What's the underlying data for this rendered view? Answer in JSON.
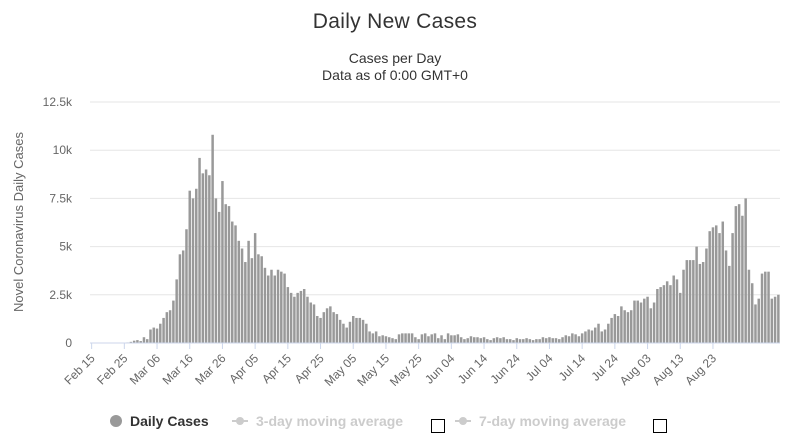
{
  "chart_data": {
    "type": "bar",
    "title": "Daily New Cases",
    "subtitle_lines": [
      "Cases per Day",
      "Data as of 0:00 GMT+0"
    ],
    "ylabel": "Novel Coronavirus Daily Cases",
    "xlabel": "",
    "ylim": [
      0,
      12500
    ],
    "yticks": [
      0,
      2500,
      5000,
      7500,
      10000,
      12500
    ],
    "ytick_labels": [
      "0",
      "2.5k",
      "5k",
      "7.5k",
      "10k",
      "12.5k"
    ],
    "x_start": "2020-02-15",
    "xtick_labels": [
      "Feb 15",
      "Feb 25",
      "Mar 06",
      "Mar 16",
      "Mar 26",
      "Apr 05",
      "Apr 15",
      "Apr 25",
      "May 05",
      "May 15",
      "May 25",
      "Jun 04",
      "Jun 14",
      "Jun 24",
      "Jul 04",
      "Jul 14",
      "Jul 24",
      "Aug 03",
      "Aug 13",
      "Aug 23"
    ],
    "grid": true,
    "legend_position": "bottom",
    "colors": {
      "bars": "#999999",
      "grid": "#e6e6e6",
      "axis": "#ccd6eb",
      "legend_inactive": "#cccccc",
      "text": "#333333",
      "tick": "#666666"
    },
    "series": [
      {
        "name": "Daily Cases",
        "values": [
          0,
          0,
          0,
          0,
          0,
          0,
          0,
          0,
          0,
          0,
          20,
          30,
          60,
          120,
          150,
          100,
          300,
          200,
          700,
          800,
          750,
          1000,
          1300,
          1600,
          1700,
          2200,
          3300,
          4600,
          4800,
          5900,
          7900,
          7500,
          8000,
          9600,
          8800,
          9000,
          8700,
          10800,
          7500,
          6800,
          8400,
          7200,
          7100,
          6300,
          6100,
          5300,
          4900,
          4200,
          5300,
          4400,
          5700,
          4600,
          4500,
          3900,
          3500,
          3800,
          3500,
          3800,
          3700,
          3600,
          2900,
          2600,
          2400,
          2600,
          2700,
          2800,
          2400,
          2100,
          2000,
          1400,
          1300,
          1600,
          1800,
          1900,
          1600,
          1500,
          1200,
          1000,
          800,
          1100,
          1400,
          1300,
          1300,
          1200,
          1000,
          600,
          500,
          600,
          350,
          400,
          350,
          300,
          250,
          200,
          450,
          500,
          500,
          500,
          500,
          300,
          200,
          450,
          500,
          350,
          450,
          500,
          250,
          400,
          200,
          500,
          400,
          400,
          450,
          300,
          200,
          250,
          350,
          300,
          300,
          250,
          300,
          200,
          150,
          250,
          300,
          250,
          300,
          200,
          200,
          150,
          250,
          200,
          200,
          250,
          200,
          150,
          200,
          200,
          300,
          250,
          300,
          250,
          250,
          200,
          300,
          400,
          350,
          500,
          450,
          350,
          500,
          600,
          700,
          650,
          800,
          1000,
          600,
          700,
          1000,
          1300,
          1500,
          1400,
          1900,
          1700,
          1600,
          1700,
          2200,
          2200,
          2100,
          2300,
          2400,
          1800,
          2100,
          2800,
          2900,
          3000,
          3200,
          3000,
          3500,
          3300,
          2600,
          3800,
          4300,
          4300,
          4300,
          5000,
          4100,
          4200,
          4900,
          5800,
          6000,
          6100,
          5700,
          6300,
          4800,
          4000,
          5700,
          7100,
          7200,
          6600,
          7500,
          3800,
          3100,
          2000,
          2300,
          3600,
          3700,
          3700,
          2300,
          2400,
          2500
        ]
      }
    ],
    "legend": [
      {
        "name": "Daily Cases",
        "active": true
      },
      {
        "name": "3-day moving average",
        "active": false
      },
      {
        "name": "7-day moving average",
        "active": false
      }
    ]
  }
}
